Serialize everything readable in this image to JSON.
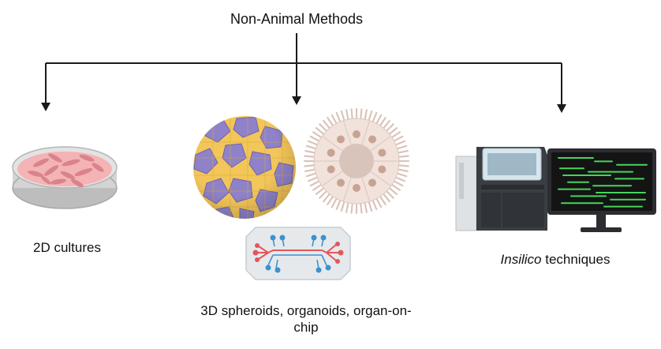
{
  "diagram": {
    "title": "Non-Animal Methods",
    "branches": [
      {
        "id": "2d",
        "label": "2D cultures",
        "icon": "petri-dish-icon"
      },
      {
        "id": "3d",
        "label_lines": [
          "3D spheroids, organoids, organ-on-",
          "chip"
        ],
        "icons": [
          "spheroid-icon",
          "organoid-icon",
          "organ-on-chip-icon"
        ]
      },
      {
        "id": "insilico",
        "label_italic": "Insilico",
        "label_rest": " techniques",
        "icon": "computer-workstation-icon"
      }
    ]
  },
  "colors": {
    "line": "#1a1a1a",
    "dish_rim": "#c9c9c9",
    "dish_medium": "#f4b3b4",
    "cells": "#d9838c",
    "spheroid_yellow": "#f3c65a",
    "spheroid_purple": "#8f82c9",
    "organoid_fill": "#f1e2db",
    "organoid_core": "#d9c4bb",
    "organoid_nucleus": "#c8a394",
    "chip_body": "#e6e9ec",
    "chip_red": "#e1575d",
    "chip_blue": "#3b92cf",
    "screen_bg": "#141414",
    "screen_code": "#47d45a",
    "machine_dark": "#3a3d42",
    "machine_light": "#dfe2e5"
  }
}
